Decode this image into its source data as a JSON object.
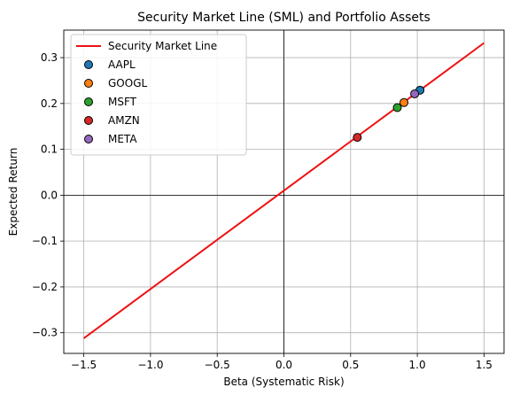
{
  "chart_data": {
    "type": "scatter",
    "title": "Security Market Line (SML) and Portfolio Assets",
    "xlabel": "Beta (Systematic Risk)",
    "ylabel": "Expected Return",
    "xlim": [
      -1.65,
      1.65
    ],
    "ylim": [
      -0.345,
      0.36
    ],
    "xticks": [
      -1.5,
      -1.0,
      -0.5,
      0.0,
      0.5,
      1.0,
      1.5
    ],
    "xtick_labels": [
      "−1.5",
      "−1.0",
      "−0.5",
      "0.0",
      "0.5",
      "1.0",
      "1.5"
    ],
    "yticks": [
      -0.3,
      -0.2,
      -0.1,
      0.0,
      0.1,
      0.2,
      0.3
    ],
    "ytick_labels": [
      "−0.3",
      "−0.2",
      "−0.1",
      "0.0",
      "0.1",
      "0.2",
      "0.3"
    ],
    "grid": true,
    "legend_position": "top-left",
    "sml": {
      "name": "Security Market Line",
      "color": "#ee1111",
      "x": [
        -1.5,
        1.5
      ],
      "y": [
        -0.312,
        0.332
      ]
    },
    "series": [
      {
        "name": "AAPL",
        "color": "#1f77b4",
        "beta": 1.02,
        "return": 0.229
      },
      {
        "name": "GOOGL",
        "color": "#ff7f0e",
        "beta": 0.9,
        "return": 0.202
      },
      {
        "name": "MSFT",
        "color": "#2ca02c",
        "beta": 0.85,
        "return": 0.191
      },
      {
        "name": "AMZN",
        "color": "#d62728",
        "beta": 0.55,
        "return": 0.126
      },
      {
        "name": "META",
        "color": "#9467bd",
        "beta": 0.98,
        "return": 0.221
      }
    ]
  }
}
